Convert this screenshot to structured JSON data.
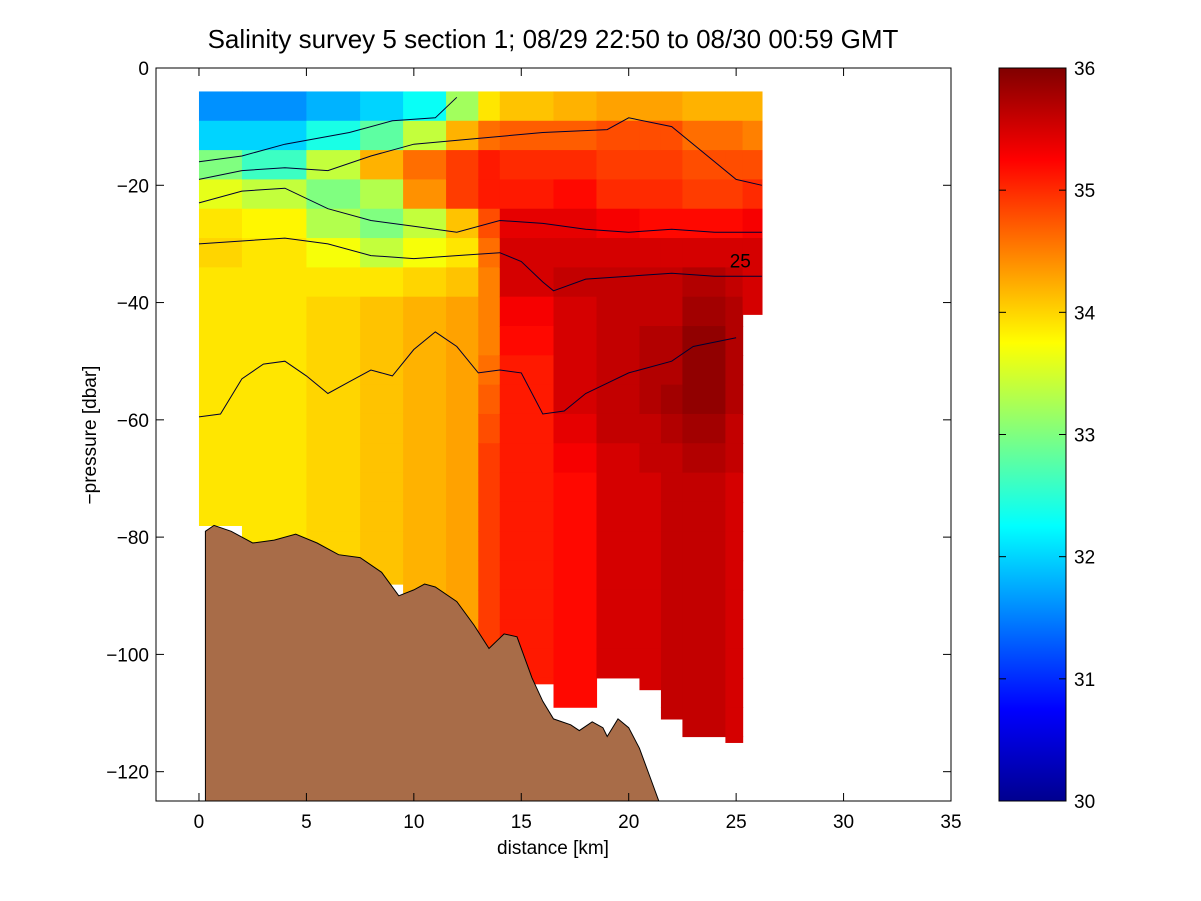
{
  "chart_data": {
    "type": "heatmap",
    "title": "Salinity survey 5 section 1; 08/29 22:50 to 08/30 00:59 GMT",
    "xlabel": "distance [km]",
    "ylabel": "−pressure [dbar]",
    "xlim": [
      -2,
      35
    ],
    "ylim": [
      -125,
      0
    ],
    "x_ticks": [
      0,
      5,
      10,
      15,
      20,
      25,
      30,
      35
    ],
    "x_tick_labels": [
      "0",
      "5",
      "10",
      "15",
      "20",
      "25",
      "30",
      "35"
    ],
    "y_ticks": [
      0,
      -20,
      -40,
      -60,
      -80,
      -100,
      -120
    ],
    "y_tick_labels": [
      "0",
      "−20",
      "−40",
      "−60",
      "−80",
      "−100",
      "−120"
    ],
    "colorbar": {
      "range": [
        30,
        36
      ],
      "ticks": [
        30,
        31,
        32,
        33,
        34,
        35,
        36
      ],
      "tick_labels": [
        "30",
        "31",
        "32",
        "33",
        "34",
        "35",
        "36"
      ],
      "colormap": "jet"
    },
    "grid": false,
    "contour_label": "25",
    "sections": [
      {
        "x0": 0.0,
        "x1": 2.0,
        "bottom": -78,
        "cols": [
          31.6,
          32.0,
          33.0,
          33.6,
          33.9,
          34.0,
          33.9,
          33.9,
          33.9,
          33.9,
          33.9,
          33.9,
          33.9,
          33.9,
          33.9,
          33.9
        ]
      },
      {
        "x0": 2.0,
        "x1": 5.0,
        "bottom": -81,
        "cols": [
          31.6,
          32.0,
          32.6,
          33.4,
          33.8,
          33.9,
          33.9,
          33.9,
          33.9,
          33.9,
          33.9,
          33.9,
          33.9,
          33.9,
          33.9,
          33.9
        ]
      },
      {
        "x0": 5.0,
        "x1": 7.5,
        "bottom": -85,
        "cols": [
          31.8,
          32.4,
          33.4,
          33.0,
          33.3,
          33.7,
          33.9,
          34.0,
          34.0,
          34.0,
          34.0,
          34.0,
          34.0,
          34.0,
          34.0,
          34.0
        ]
      },
      {
        "x0": 7.5,
        "x1": 9.5,
        "bottom": -88,
        "cols": [
          32.0,
          32.8,
          34.2,
          33.3,
          33.0,
          33.4,
          33.9,
          34.1,
          34.1,
          34.1,
          34.1,
          34.1,
          34.1,
          34.1,
          34.1,
          34.1
        ]
      },
      {
        "x0": 9.5,
        "x1": 11.5,
        "bottom": -93,
        "cols": [
          32.3,
          33.4,
          34.6,
          34.4,
          33.4,
          33.7,
          34.0,
          34.2,
          34.2,
          34.2,
          34.2,
          34.2,
          34.2,
          34.2,
          34.2,
          34.2
        ]
      },
      {
        "x0": 11.5,
        "x1": 13.0,
        "bottom": -98,
        "cols": [
          33.2,
          34.2,
          34.9,
          34.9,
          34.1,
          33.9,
          34.1,
          34.3,
          34.3,
          34.3,
          34.3,
          34.3,
          34.3,
          34.3,
          34.3,
          34.3
        ]
      },
      {
        "x0": 13.0,
        "x1": 14.0,
        "bottom": -103,
        "cols": [
          33.9,
          34.6,
          35.1,
          35.1,
          34.8,
          34.6,
          34.5,
          34.5,
          34.5,
          34.6,
          34.7,
          34.8,
          34.9,
          34.9,
          34.9,
          34.9
        ]
      },
      {
        "x0": 14.0,
        "x1": 16.5,
        "bottom": -105,
        "cols": [
          34.1,
          34.7,
          35.0,
          35.1,
          35.4,
          35.5,
          35.5,
          35.3,
          35.2,
          35.1,
          35.1,
          35.1,
          35.1,
          35.1,
          35.1,
          35.1
        ]
      },
      {
        "x0": 16.5,
        "x1": 18.5,
        "bottom": -109,
        "cols": [
          34.2,
          34.7,
          35.0,
          35.2,
          35.4,
          35.5,
          35.6,
          35.5,
          35.5,
          35.5,
          35.5,
          35.4,
          35.3,
          35.2,
          35.2,
          35.2
        ]
      },
      {
        "x0": 18.5,
        "x1": 20.5,
        "bottom": -104,
        "cols": [
          34.3,
          34.8,
          34.9,
          35.0,
          35.3,
          35.5,
          35.6,
          35.6,
          35.6,
          35.6,
          35.6,
          35.6,
          35.5,
          35.5,
          35.5,
          35.5
        ]
      },
      {
        "x0": 20.5,
        "x1": 21.5,
        "bottom": -106,
        "cols": [
          34.3,
          34.8,
          34.9,
          35.0,
          35.2,
          35.5,
          35.6,
          35.6,
          35.7,
          35.7,
          35.7,
          35.6,
          35.6,
          35.5,
          35.5,
          35.5
        ]
      },
      {
        "x0": 21.5,
        "x1": 22.5,
        "bottom": -111,
        "cols": [
          34.3,
          34.8,
          34.9,
          35.0,
          35.2,
          35.5,
          35.6,
          35.6,
          35.7,
          35.7,
          35.8,
          35.7,
          35.6,
          35.6,
          35.6,
          35.6
        ]
      },
      {
        "x0": 22.5,
        "x1": 24.5,
        "bottom": -114,
        "cols": [
          34.2,
          34.6,
          34.8,
          34.9,
          35.2,
          35.5,
          35.7,
          35.8,
          35.9,
          35.9,
          35.9,
          35.8,
          35.7,
          35.6,
          35.6,
          35.6
        ]
      },
      {
        "x0": 24.5,
        "x1": 25.3,
        "bottom": -115,
        "cols": [
          34.2,
          34.6,
          34.8,
          34.9,
          35.2,
          35.5,
          35.6,
          35.7,
          35.7,
          35.7,
          35.7,
          35.6,
          35.6,
          35.5,
          35.5,
          35.5
        ]
      },
      {
        "x0": 25.3,
        "x1": 26.2,
        "bottom": -42,
        "cols": [
          34.2,
          34.5,
          34.8,
          35.0,
          35.3,
          35.5,
          35.5,
          35.5,
          35.5,
          35.5,
          35.5,
          35.5,
          35.5,
          35.5,
          35.5,
          35.5
        ]
      }
    ],
    "contours": [
      [
        [
          0,
          -16
        ],
        [
          2,
          -15
        ],
        [
          4,
          -13
        ],
        [
          7,
          -11
        ],
        [
          9,
          -9
        ],
        [
          11,
          -8.5
        ],
        [
          12,
          -5
        ]
      ],
      [
        [
          0,
          -19
        ],
        [
          2,
          -17.5
        ],
        [
          4,
          -17
        ],
        [
          6,
          -17.5
        ],
        [
          8,
          -15
        ],
        [
          10,
          -13
        ],
        [
          13,
          -12
        ],
        [
          16,
          -11
        ],
        [
          19,
          -10.5
        ],
        [
          20,
          -8.5
        ],
        [
          22,
          -10
        ],
        [
          24,
          -16
        ],
        [
          25,
          -19
        ],
        [
          26.2,
          -20
        ]
      ],
      [
        [
          0,
          -23
        ],
        [
          2,
          -21
        ],
        [
          4,
          -20.5
        ],
        [
          6,
          -24
        ],
        [
          8,
          -26
        ],
        [
          10,
          -27
        ],
        [
          12,
          -28
        ],
        [
          14,
          -26
        ],
        [
          16,
          -26.5
        ],
        [
          18,
          -27.5
        ],
        [
          20,
          -28
        ],
        [
          22,
          -27.5
        ],
        [
          24,
          -28
        ],
        [
          26.2,
          -28
        ]
      ],
      [
        [
          0,
          -30
        ],
        [
          2,
          -29.5
        ],
        [
          4,
          -29
        ],
        [
          6,
          -30
        ],
        [
          8,
          -32
        ],
        [
          10,
          -32.5
        ],
        [
          12,
          -32
        ],
        [
          14,
          -31.5
        ],
        [
          15,
          -33
        ],
        [
          16,
          -36.5
        ],
        [
          16.5,
          -38
        ],
        [
          18,
          -36
        ],
        [
          20,
          -35.5
        ],
        [
          22,
          -35
        ],
        [
          24,
          -35.5
        ],
        [
          26.2,
          -35.5
        ]
      ],
      [
        [
          0,
          -59.5
        ],
        [
          1,
          -59
        ],
        [
          2,
          -53
        ],
        [
          3,
          -50.5
        ],
        [
          4,
          -50
        ],
        [
          5,
          -52.5
        ],
        [
          6,
          -55.5
        ],
        [
          7,
          -53.5
        ],
        [
          8,
          -51.5
        ],
        [
          9,
          -52.5
        ],
        [
          10,
          -48
        ],
        [
          11,
          -45
        ],
        [
          12,
          -47.5
        ],
        [
          13,
          -52
        ],
        [
          14,
          -51.5
        ],
        [
          15,
          -52
        ],
        [
          16,
          -59
        ],
        [
          17,
          -58.5
        ],
        [
          18,
          -55.5
        ],
        [
          20,
          -52
        ],
        [
          22,
          -50
        ],
        [
          23,
          -47.5
        ],
        [
          25,
          -46
        ]
      ]
    ],
    "bathymetry": [
      [
        0.3,
        -79
      ],
      [
        0.7,
        -78
      ],
      [
        1.5,
        -79
      ],
      [
        2.5,
        -81
      ],
      [
        3.5,
        -80.5
      ],
      [
        4.5,
        -79.5
      ],
      [
        5.5,
        -81
      ],
      [
        6.5,
        -83
      ],
      [
        7.5,
        -83.5
      ],
      [
        8.5,
        -86
      ],
      [
        9.3,
        -90
      ],
      [
        10.0,
        -89
      ],
      [
        10.5,
        -88
      ],
      [
        11.0,
        -88.5
      ],
      [
        12.0,
        -91
      ],
      [
        12.8,
        -95
      ],
      [
        13.5,
        -99
      ],
      [
        14.2,
        -96.5
      ],
      [
        14.8,
        -97
      ],
      [
        15.5,
        -104
      ],
      [
        16.0,
        -108
      ],
      [
        16.5,
        -111
      ],
      [
        17.3,
        -112
      ],
      [
        17.7,
        -113
      ],
      [
        18.3,
        -111.5
      ],
      [
        18.8,
        -112.5
      ],
      [
        19.0,
        -114
      ],
      [
        19.5,
        -111
      ],
      [
        20.0,
        -112.5
      ],
      [
        20.5,
        -116
      ],
      [
        21.0,
        -121
      ],
      [
        21.4,
        -125
      ]
    ],
    "water_color": "#ffffff",
    "seafloor_color": "#a86c48"
  }
}
